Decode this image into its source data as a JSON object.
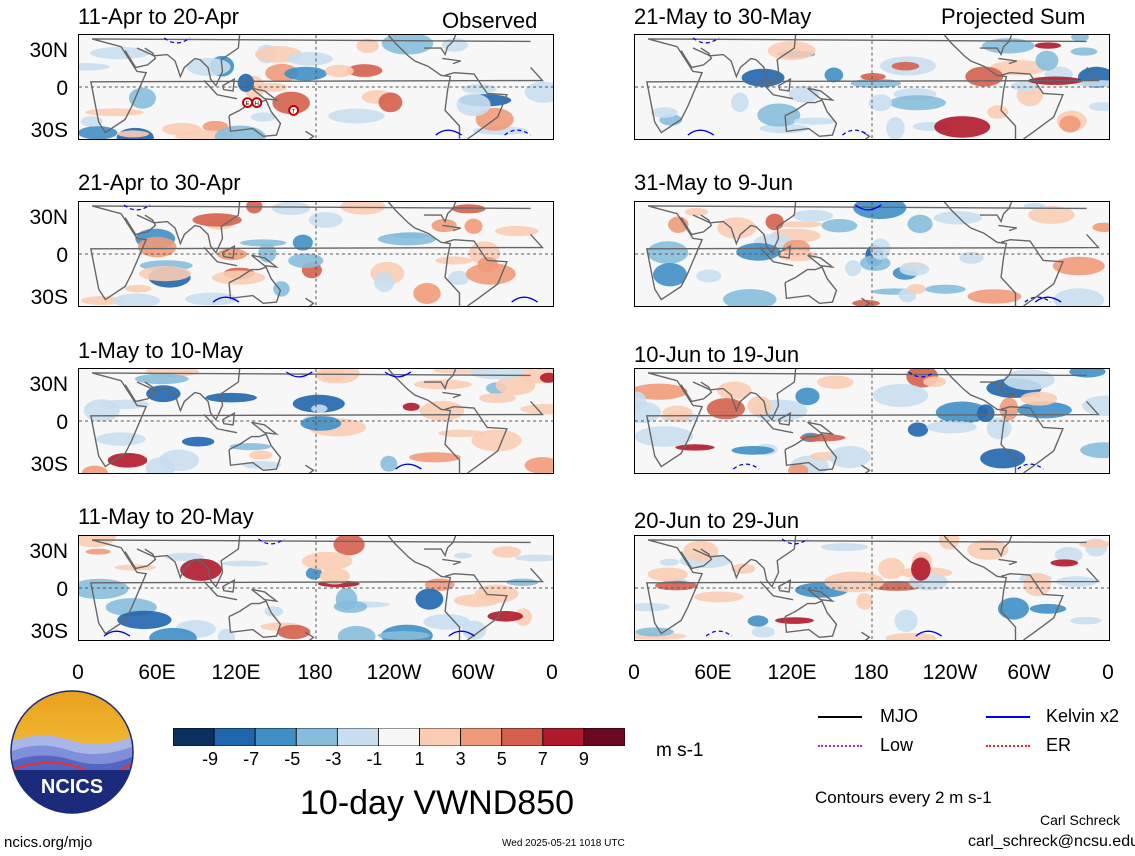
{
  "panels_left": [
    {
      "title": "11-Apr to 20-Apr",
      "label": "Observed"
    },
    {
      "title": "21-Apr to 30-Apr",
      "label": ""
    },
    {
      "title": "1-May to 10-May",
      "label": ""
    },
    {
      "title": "11-May to 20-May",
      "label": ""
    }
  ],
  "panels_right": [
    {
      "title": "21-May to 30-May",
      "label": "Projected Sum"
    },
    {
      "title": "31-May to 9-Jun",
      "label": ""
    },
    {
      "title": "10-Jun to 19-Jun",
      "label": ""
    },
    {
      "title": "20-Jun to 29-Jun",
      "label": ""
    }
  ],
  "lat_labels": [
    "30N",
    "0",
    "30S"
  ],
  "lon_labels": [
    "0",
    "60E",
    "120E",
    "180",
    "120W",
    "60W",
    "0"
  ],
  "colorbar": {
    "ticks": [
      "-9",
      "-7",
      "-5",
      "-3",
      "-1",
      "1",
      "3",
      "5",
      "7",
      "9"
    ],
    "colors": [
      "#0b2f5e",
      "#1f66ae",
      "#3f8fc5",
      "#86bcdc",
      "#c8def0",
      "#f7f7f7",
      "#f9ccb3",
      "#ef9a79",
      "#d5604d",
      "#b0182b",
      "#6b0720"
    ],
    "unit": "m s-1"
  },
  "main_title": "10-day VWND850",
  "legend": {
    "mjo": "MJO",
    "kelvin": "Kelvin x2",
    "low": "Low",
    "er": "ER",
    "colors": {
      "mjo": "#000000",
      "kelvin": "#0000ee",
      "low": "#9933cc",
      "er": "#ee2222"
    }
  },
  "contour_note": "Contours every 2 m s-1",
  "credit_name": "Carl Schreck",
  "credit_email": "carl_schreck@ncsu.edu",
  "site": "ncics.org/mjo",
  "timestamp": "Wed 2025-05-21 1018 UTC",
  "logo_text": "NCICS",
  "storm_markers": [
    "E",
    "H",
    "T"
  ]
}
